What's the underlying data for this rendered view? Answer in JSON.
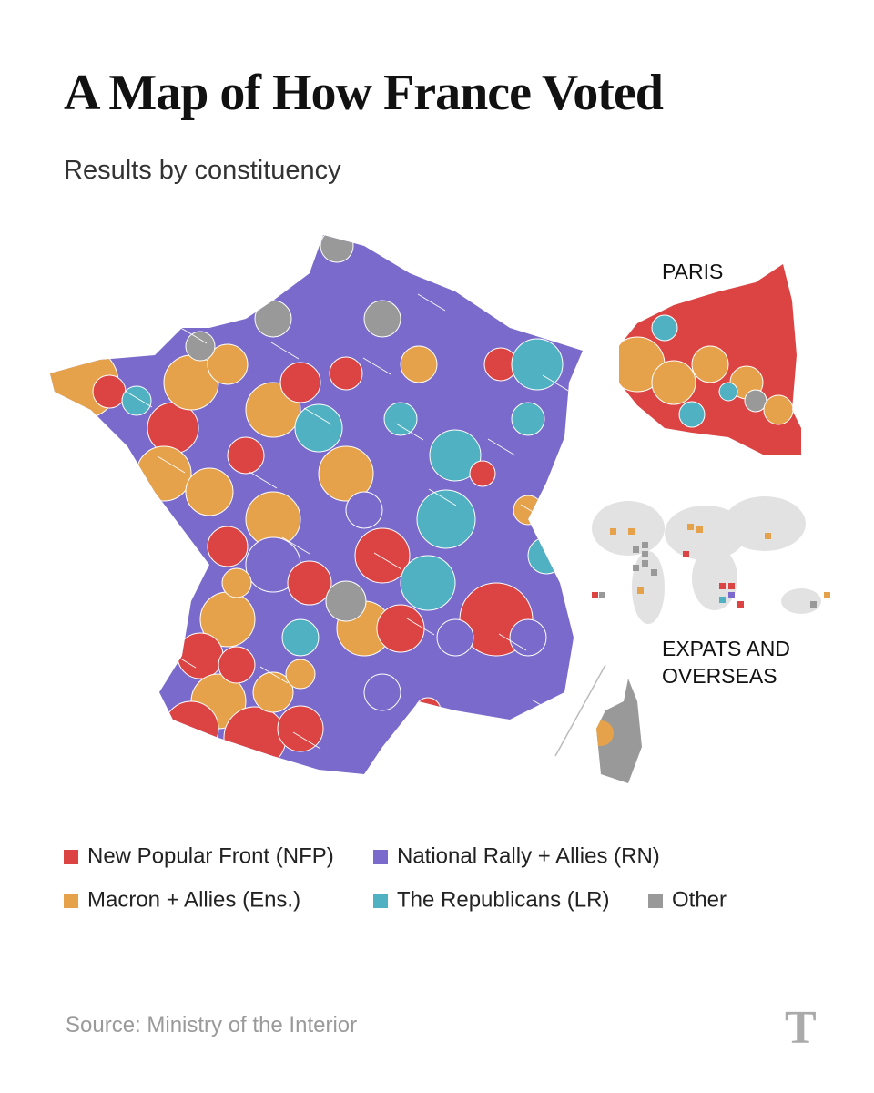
{
  "header": {
    "title": "A Map of How France Voted",
    "subtitle": "Results by constituency"
  },
  "map": {
    "labels": [
      "PARIS",
      "EXPATS AND",
      "OVERSEAS"
    ]
  },
  "legend": {
    "items": [
      {
        "name": "New Popular Front (NFP)",
        "color": "#dc4443"
      },
      {
        "name": "National Rally + Allies (RN)",
        "color": "#7a6acb"
      },
      {
        "name": "Macron + Allies (Ens.)",
        "color": "#e6a24a"
      },
      {
        "name": "The Republicans (LR)",
        "color": "#4fb1c1"
      },
      {
        "name": "Other",
        "color": "#999999"
      }
    ]
  },
  "footer": {
    "source": "Source: Ministry of the Interior",
    "logo": "T"
  }
}
